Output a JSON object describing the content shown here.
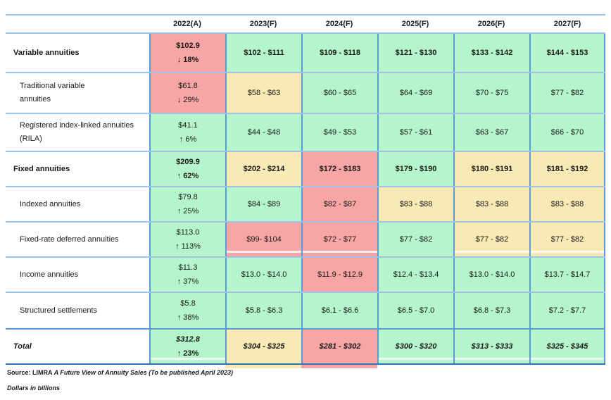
{
  "palette": {
    "green": "#B5F5CB",
    "red": "#F7A5A5",
    "yellow": "#F8E9B5",
    "lineLight": "#9DC3E6",
    "lineMid": "#5B9BD5",
    "lineDark": "#2E75B6"
  },
  "chart_data": {
    "type": "table",
    "description": "U.S. annuity sales actuals for 2022 and forecast ranges 2023-2027, dollars in billions, cells color-coded green/yellow/red",
    "columns": [
      "2022(A)",
      "2023(F)",
      "2024(F)",
      "2025(F)",
      "2026(F)",
      "2027(F)"
    ],
    "rows": [
      {
        "label": "Variable annuities",
        "actual": {
          "value": "$102.9",
          "change": "↓ 18%",
          "color": "red"
        },
        "forecasts": [
          {
            "text": "$102 - $111",
            "color": "green"
          },
          {
            "text": "$109 - $118",
            "color": "green"
          },
          {
            "text": "$121 - $130",
            "color": "green"
          },
          {
            "text": "$133 - $142",
            "color": "green"
          },
          {
            "text": "$144 - $153",
            "color": "green"
          }
        ]
      },
      {
        "label": "Traditional variable annuities",
        "actual": {
          "value": "$61.8",
          "change": "↓ 29%",
          "color": "red"
        },
        "forecasts": [
          {
            "text": "$58 - $63",
            "color": "yellow"
          },
          {
            "text": "$60 - $65",
            "color": "green"
          },
          {
            "text": "$64 - $69",
            "color": "green"
          },
          {
            "text": "$70 - $75",
            "color": "green"
          },
          {
            "text": "$77 - $82",
            "color": "green"
          }
        ]
      },
      {
        "label": "Registered index-linked annuities (RILA)",
        "actual": {
          "value": "$41.1",
          "change": "↑ 6%",
          "color": "green"
        },
        "forecasts": [
          {
            "text": "$44 - $48",
            "color": "green"
          },
          {
            "text": "$49 - $53",
            "color": "green"
          },
          {
            "text": "$57 - $61",
            "color": "green"
          },
          {
            "text": "$63 - $67",
            "color": "green"
          },
          {
            "text": "$66 - $70",
            "color": "green"
          }
        ]
      },
      {
        "label": "Fixed annuities",
        "actual": {
          "value": "$209.9",
          "change": "↑ 62%",
          "color": "green"
        },
        "forecasts": [
          {
            "text": "$202 - $214",
            "color": "yellow"
          },
          {
            "text": "$172 - $183",
            "color": "red"
          },
          {
            "text": "$179 - $190",
            "color": "green"
          },
          {
            "text": "$180 - $191",
            "color": "yellow"
          },
          {
            "text": "$181 - $192",
            "color": "yellow"
          }
        ]
      },
      {
        "label": "Indexed annuities",
        "actual": {
          "value": "$79.8",
          "change": "↑ 25%",
          "color": "green"
        },
        "forecasts": [
          {
            "text": "$84 - $89",
            "color": "green"
          },
          {
            "text": "$82 - $87",
            "color": "red"
          },
          {
            "text": "$83 - $88",
            "color": "yellow"
          },
          {
            "text": "$83 - $88",
            "color": "yellow"
          },
          {
            "text": "$83 - $88",
            "color": "yellow"
          }
        ]
      },
      {
        "label": "Fixed-rate deferred annuities",
        "actual": {
          "value": "$113.0",
          "change": "↑ 113%",
          "color": "green"
        },
        "forecasts": [
          {
            "text": "$99- $104",
            "color": "red"
          },
          {
            "text": "$72 - $77",
            "color": "red"
          },
          {
            "text": "$77 - $82",
            "color": "green"
          },
          {
            "text": "$77 - $82",
            "color": "yellow"
          },
          {
            "text": "$77 - $82",
            "color": "yellow"
          }
        ]
      },
      {
        "label": "Income annuities",
        "actual": {
          "value": "$11.3",
          "change": "↑ 37%",
          "color": "green"
        },
        "forecasts": [
          {
            "text": "$13.0 - $14.0",
            "color": "green"
          },
          {
            "text": "$11.9 - $12.9",
            "color": "red"
          },
          {
            "text": "$12.4 - $13.4",
            "color": "green"
          },
          {
            "text": "$13.0 - $14.0",
            "color": "green"
          },
          {
            "text": "$13.7 - $14.7",
            "color": "green"
          }
        ]
      },
      {
        "label": "Structured settlements",
        "actual": {
          "value": "$5.8",
          "change": "↑ 38%",
          "color": "green"
        },
        "forecasts": [
          {
            "text": "$5.8 - $6.3",
            "color": "green"
          },
          {
            "text": "$6.1 - $6.6",
            "color": "green"
          },
          {
            "text": "$6.5 - $7.0",
            "color": "green"
          },
          {
            "text": "$6.8 - $7.3",
            "color": "green"
          },
          {
            "text": "$7.2 - $7.7",
            "color": "green"
          }
        ]
      },
      {
        "label": "Total",
        "actual": {
          "value": "$312.8",
          "change": "↑ 23%",
          "color": "green"
        },
        "forecasts": [
          {
            "text": "$304 - $325",
            "color": "yellow"
          },
          {
            "text": "$281 - $302",
            "color": "red"
          },
          {
            "text": "$300 - $320",
            "color": "green"
          },
          {
            "text": "$313 - $333",
            "color": "green"
          },
          {
            "text": "$325 - $345",
            "color": "green"
          }
        ]
      }
    ],
    "notes": {
      "source_prefix": "Source: LIMRA",
      "source_italic": "A Future View of Annuity Sales (To be published April 2023)",
      "units": "Dollars in billions"
    }
  }
}
